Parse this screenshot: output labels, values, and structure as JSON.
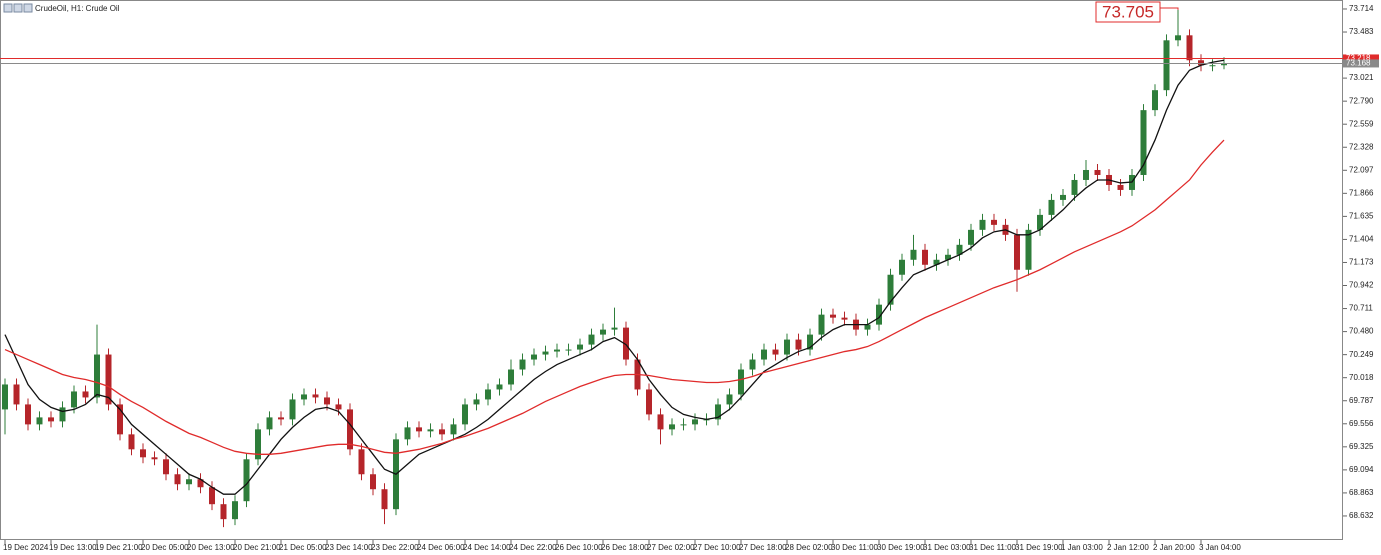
{
  "chart_data": {
    "type": "candlestick",
    "title": "CrudeOil, H1: Crude Oil",
    "up_color": "#2e7d3a",
    "down_color": "#b5252a",
    "ylim": [
      68.391,
      73.804
    ],
    "yticks": [
      73.714,
      73.483,
      73.021,
      {
        "value": 72.79,
        "label": "72.790"
      },
      72.559,
      72.328,
      72.097,
      71.866,
      71.635,
      71.404,
      71.173,
      70.942,
      70.711,
      {
        "value": 70.48,
        "label": "70.480"
      },
      70.249,
      70.018,
      69.787,
      69.556,
      69.325,
      69.094,
      68.863,
      68.632
    ],
    "categories": [
      "19 Dec 2024",
      null,
      null,
      null,
      "19 Dec 13:00",
      null,
      null,
      null,
      "19 Dec 21:00",
      null,
      null,
      null,
      "20 Dec 05:00",
      null,
      null,
      null,
      "20 Dec 13:00",
      null,
      null,
      null,
      "20 Dec 21:00",
      null,
      null,
      null,
      "21 Dec 05:00",
      null,
      null,
      null,
      "23 Dec 14:00",
      null,
      null,
      null,
      "23 Dec 22:00",
      null,
      null,
      null,
      "24 Dec 06:00",
      null,
      null,
      null,
      "24 Dec 14:00",
      null,
      null,
      null,
      "24 Dec 22:00",
      null,
      null,
      null,
      "26 Dec 10:00",
      null,
      null,
      null,
      "26 Dec 18:00",
      null,
      null,
      null,
      "27 Dec 02:00",
      null,
      null,
      null,
      "27 Dec 10:00",
      null,
      null,
      null,
      "27 Dec 18:00",
      null,
      null,
      null,
      "28 Dec 02:00",
      null,
      null,
      null,
      "30 Dec 11:00",
      null,
      null,
      null,
      "30 Dec 19:00",
      null,
      null,
      null,
      "31 Dec 03:00",
      null,
      null,
      null,
      "31 Dec 11:00",
      null,
      null,
      null,
      "31 Dec 19:00",
      null,
      null,
      null,
      "1 Jan 03:00",
      null,
      null,
      null,
      "2 Jan 12:00",
      null,
      null,
      null,
      "2 Jan 20:00",
      null,
      null,
      null,
      "3 Jan 04:00",
      null,
      null
    ],
    "open": [
      69.7,
      69.95,
      69.75,
      69.55,
      69.62,
      69.58,
      69.72,
      69.88,
      69.82,
      70.25,
      69.75,
      69.45,
      69.3,
      69.22,
      69.2,
      69.05,
      68.95,
      69.0,
      68.92,
      68.75,
      68.6,
      68.78,
      69.2,
      69.5,
      69.62,
      69.6,
      69.8,
      69.85,
      69.82,
      69.75,
      69.7,
      69.3,
      69.05,
      68.9,
      68.7,
      69.4,
      69.52,
      69.48,
      69.5,
      69.45,
      69.55,
      69.75,
      69.8,
      69.9,
      69.95,
      70.1,
      70.2,
      70.25,
      70.28,
      70.3,
      70.3,
      70.35,
      70.45,
      70.5,
      70.52,
      70.2,
      69.9,
      69.65,
      69.5,
      69.55,
      69.55,
      69.6,
      69.6,
      69.75,
      69.85,
      70.1,
      70.2,
      70.3,
      70.25,
      70.4,
      70.3,
      70.45,
      70.65,
      70.62,
      70.6,
      70.5,
      70.55,
      70.75,
      71.05,
      71.2,
      71.3,
      71.15,
      71.2,
      71.25,
      71.35,
      71.5,
      71.6,
      71.55,
      71.45,
      71.1,
      71.5,
      71.65,
      71.8,
      71.85,
      72.0,
      72.1,
      72.05,
      71.95,
      71.9,
      72.05,
      72.7,
      72.9,
      73.4,
      73.45,
      73.2,
      73.15,
      73.15
    ],
    "high": [
      70.01,
      70.01,
      69.81,
      69.68,
      69.68,
      69.78,
      69.94,
      69.94,
      70.55,
      70.31,
      69.81,
      69.51,
      69.36,
      69.28,
      69.26,
      69.11,
      69.06,
      69.06,
      68.98,
      68.81,
      68.84,
      69.26,
      69.56,
      69.68,
      69.68,
      69.86,
      69.91,
      69.91,
      69.88,
      69.81,
      69.76,
      69.36,
      69.11,
      68.96,
      69.46,
      69.58,
      69.58,
      69.56,
      69.56,
      69.61,
      69.81,
      69.86,
      69.96,
      70.01,
      70.2,
      70.26,
      70.31,
      70.34,
      70.36,
      70.36,
      70.41,
      70.51,
      70.56,
      70.72,
      70.58,
      70.26,
      69.96,
      69.71,
      69.61,
      69.61,
      69.66,
      69.66,
      69.81,
      69.91,
      70.16,
      70.26,
      70.36,
      70.36,
      70.46,
      70.46,
      70.51,
      70.71,
      70.71,
      70.68,
      70.66,
      70.61,
      70.81,
      71.11,
      71.26,
      71.45,
      71.36,
      71.26,
      71.31,
      71.41,
      71.56,
      71.66,
      71.66,
      71.61,
      71.51,
      71.56,
      71.71,
      71.86,
      71.91,
      72.06,
      72.2,
      72.16,
      72.11,
      72.01,
      72.11,
      72.76,
      72.96,
      73.46,
      73.705,
      73.51,
      73.26,
      73.21,
      73.23
    ],
    "low": [
      69.45,
      69.69,
      69.49,
      69.49,
      69.52,
      69.52,
      69.66,
      69.76,
      69.76,
      69.69,
      69.39,
      69.24,
      69.16,
      69.14,
      68.99,
      68.89,
      68.89,
      68.86,
      68.69,
      68.52,
      68.54,
      68.72,
      69.14,
      69.44,
      69.54,
      69.54,
      69.74,
      69.76,
      69.69,
      69.64,
      69.24,
      68.99,
      68.84,
      68.55,
      68.64,
      69.34,
      69.42,
      69.42,
      69.39,
      69.39,
      69.49,
      69.69,
      69.74,
      69.84,
      69.89,
      70.04,
      70.14,
      70.19,
      70.22,
      70.24,
      70.24,
      70.29,
      70.39,
      70.44,
      70.14,
      69.84,
      69.59,
      69.35,
      69.44,
      69.49,
      69.49,
      69.54,
      69.54,
      69.69,
      69.79,
      70.04,
      70.14,
      70.19,
      70.19,
      70.24,
      70.24,
      70.39,
      70.56,
      70.54,
      70.44,
      70.44,
      70.49,
      70.69,
      70.99,
      71.14,
      71.09,
      71.09,
      71.14,
      71.19,
      71.29,
      71.44,
      71.49,
      71.39,
      70.88,
      71.04,
      71.44,
      71.59,
      71.74,
      71.79,
      71.94,
      71.99,
      71.89,
      71.84,
      71.84,
      71.99,
      72.64,
      72.84,
      73.34,
      73.14,
      73.09,
      73.09,
      73.11
    ],
    "close": [
      69.95,
      69.75,
      69.55,
      69.62,
      69.58,
      69.72,
      69.88,
      69.82,
      70.25,
      69.75,
      69.45,
      69.3,
      69.22,
      69.2,
      69.05,
      68.95,
      69.0,
      68.92,
      68.75,
      68.6,
      68.78,
      69.2,
      69.5,
      69.62,
      69.6,
      69.8,
      69.85,
      69.82,
      69.75,
      69.7,
      69.3,
      69.05,
      68.9,
      68.7,
      69.4,
      69.52,
      69.48,
      69.5,
      69.45,
      69.55,
      69.75,
      69.8,
      69.9,
      69.95,
      70.1,
      70.2,
      70.25,
      70.28,
      70.3,
      70.3,
      70.35,
      70.45,
      70.5,
      70.52,
      70.2,
      69.9,
      69.65,
      69.5,
      69.55,
      69.55,
      69.6,
      69.6,
      69.75,
      69.85,
      70.1,
      70.2,
      70.3,
      70.25,
      70.4,
      70.3,
      70.45,
      70.65,
      70.62,
      70.6,
      70.5,
      70.55,
      70.75,
      71.05,
      71.2,
      71.3,
      71.15,
      71.2,
      71.25,
      71.35,
      71.5,
      71.6,
      71.55,
      71.45,
      71.1,
      71.5,
      71.65,
      71.8,
      71.85,
      72.0,
      72.1,
      72.05,
      71.95,
      71.9,
      72.05,
      72.7,
      72.9,
      73.4,
      73.45,
      73.2,
      73.15,
      73.15,
      73.17
    ],
    "lines": [
      {
        "color": "#111111",
        "values": [
          70.45,
          70.2,
          69.95,
          69.8,
          69.72,
          69.68,
          69.7,
          69.75,
          69.85,
          69.82,
          69.7,
          69.55,
          69.45,
          69.35,
          69.25,
          69.15,
          69.05,
          69.0,
          68.92,
          68.85,
          68.85,
          68.95,
          69.1,
          69.25,
          69.4,
          69.52,
          69.62,
          69.7,
          69.72,
          69.68,
          69.55,
          69.4,
          69.25,
          69.1,
          69.05,
          69.15,
          69.25,
          69.3,
          69.35,
          69.4,
          69.45,
          69.52,
          69.6,
          69.7,
          69.8,
          69.9,
          70.0,
          70.08,
          70.15,
          70.2,
          70.25,
          70.3,
          70.38,
          70.42,
          70.35,
          70.2,
          70.0,
          69.85,
          69.72,
          69.65,
          69.62,
          69.6,
          69.62,
          69.7,
          69.82,
          69.95,
          70.08,
          70.15,
          70.22,
          70.28,
          70.32,
          70.42,
          70.5,
          70.55,
          70.55,
          70.55,
          70.62,
          70.78,
          70.92,
          71.05,
          71.1,
          71.15,
          71.2,
          71.25,
          71.32,
          71.42,
          71.48,
          71.5,
          71.45,
          71.45,
          71.5,
          71.6,
          71.7,
          71.82,
          71.92,
          72.0,
          72.0,
          71.97,
          71.98,
          72.15,
          72.4,
          72.7,
          72.95,
          73.1,
          73.15,
          73.18,
          73.2
        ]
      },
      {
        "color": "#e02b2b",
        "values": [
          70.3,
          70.25,
          70.2,
          70.15,
          70.1,
          70.05,
          70.02,
          70.0,
          69.97,
          69.93,
          69.85,
          69.78,
          69.72,
          69.65,
          69.58,
          69.52,
          69.46,
          69.42,
          69.37,
          69.32,
          69.28,
          69.26,
          69.25,
          69.25,
          69.26,
          69.28,
          69.3,
          69.32,
          69.34,
          69.35,
          69.35,
          69.33,
          69.3,
          69.27,
          69.26,
          69.28,
          69.3,
          69.33,
          69.36,
          69.4,
          69.43,
          69.47,
          69.51,
          69.56,
          69.61,
          69.66,
          69.72,
          69.78,
          69.83,
          69.88,
          69.93,
          69.97,
          70.01,
          70.04,
          70.05,
          70.05,
          70.04,
          70.02,
          70.0,
          69.99,
          69.98,
          69.97,
          69.97,
          69.98,
          70.0,
          70.03,
          70.07,
          70.1,
          70.13,
          70.16,
          70.19,
          70.22,
          70.25,
          70.28,
          70.3,
          70.33,
          70.38,
          70.44,
          70.5,
          70.56,
          70.62,
          70.67,
          70.72,
          70.77,
          70.82,
          70.87,
          70.92,
          70.96,
          71.0,
          71.05,
          71.1,
          71.16,
          71.22,
          71.28,
          71.33,
          71.38,
          71.43,
          71.48,
          71.54,
          71.62,
          71.7,
          71.8,
          71.9,
          72.0,
          72.15,
          72.28,
          72.4
        ]
      }
    ],
    "price_lines": [
      {
        "value": 73.218,
        "color": "#e02b2b"
      },
      {
        "value": 73.168,
        "color": "#8a8a8a"
      }
    ],
    "high_label": 73.705
  }
}
